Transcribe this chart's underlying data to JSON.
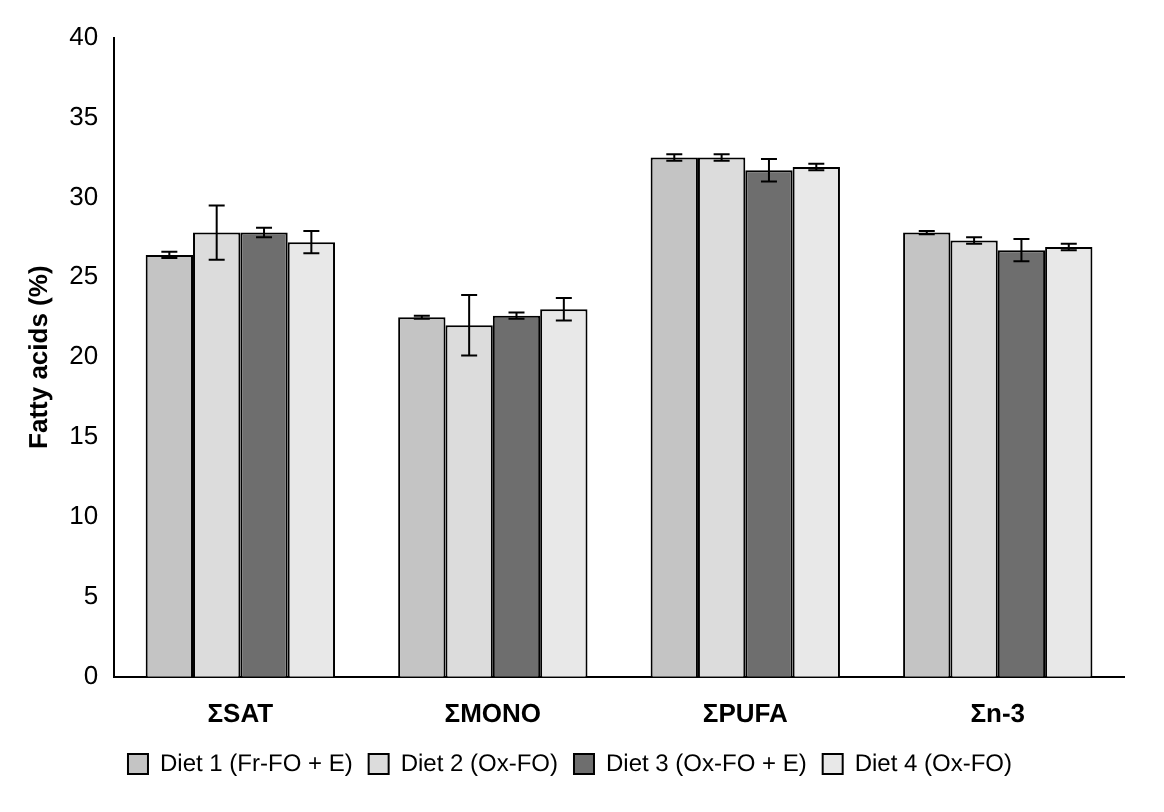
{
  "chart_data": {
    "type": "bar",
    "ylabel": "Fatty acids (%)",
    "categories": [
      "ΣSAT",
      "ΣMONO",
      "ΣPUFA",
      "Σn-3"
    ],
    "series": [
      {
        "name": "Diet 1 (Fr-FO + E)",
        "color": "#c4c4c4",
        "values": [
          26.4,
          22.5,
          32.5,
          27.8
        ],
        "errors": [
          0.2,
          0.1,
          0.2,
          0.1
        ]
      },
      {
        "name": "Diet 2 (Ox-FO)",
        "color": "#dcdcdc",
        "values": [
          27.8,
          22.0,
          32.5,
          27.3
        ],
        "errors": [
          1.7,
          1.9,
          0.2,
          0.2
        ]
      },
      {
        "name": "Diet 3 (Ox-FO + E)",
        "color": "#6e6e6e",
        "values": [
          27.8,
          22.6,
          31.7,
          26.7
        ],
        "errors": [
          0.3,
          0.2,
          0.7,
          0.7
        ]
      },
      {
        "name": "Diet 4 (Ox-FO)",
        "color": "#e8e8e8",
        "values": [
          27.2,
          23.0,
          31.9,
          26.9
        ],
        "errors": [
          0.7,
          0.7,
          0.2,
          0.2
        ]
      }
    ],
    "ylim": [
      0,
      40
    ],
    "yticks": [
      0,
      5,
      10,
      15,
      20,
      25,
      30,
      35,
      40
    ],
    "grid": false,
    "legend": "bottom"
  }
}
